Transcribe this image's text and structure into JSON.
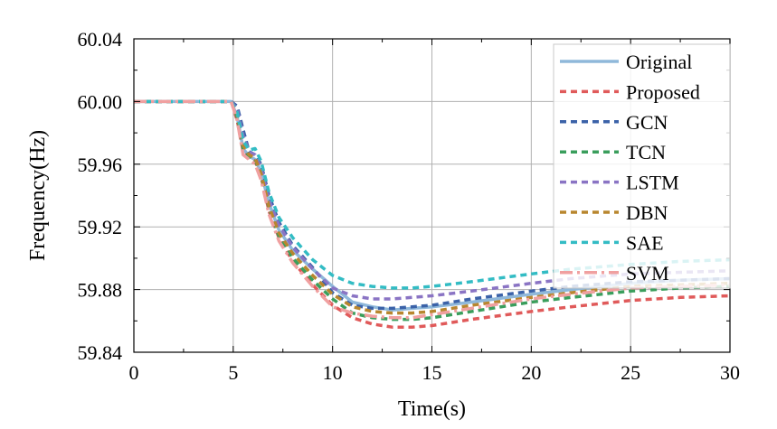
{
  "chart_data": {
    "type": "line",
    "xlabel": "Time(s)",
    "ylabel": "Frequency(Hz)",
    "xlim": [
      0,
      30
    ],
    "ylim": [
      59.84,
      60.04
    ],
    "xticks": [
      0,
      5,
      10,
      15,
      20,
      25,
      30
    ],
    "yticks": [
      59.84,
      59.88,
      59.92,
      59.96,
      60.0,
      60.04
    ],
    "xtick_labels": [
      "0",
      "5",
      "10",
      "15",
      "20",
      "25",
      "30"
    ],
    "ytick_labels": [
      "59.84",
      "59.88",
      "59.92",
      "59.96",
      "60.00",
      "60.04"
    ],
    "grid": true,
    "legend_position": "top-right",
    "x": [
      0,
      4.9,
      5.2,
      5.5,
      5.8,
      6.1,
      6.4,
      6.8,
      7.3,
      8,
      9,
      10,
      11,
      12,
      13,
      14,
      15,
      17,
      20,
      22,
      25,
      27.5,
      30
    ],
    "series": [
      {
        "name": "Original",
        "color": "#8fb8da",
        "dash": "solid",
        "values": [
          60.0,
          60.0,
          59.99,
          59.97,
          59.965,
          59.963,
          59.955,
          59.935,
          59.918,
          59.905,
          59.893,
          59.882,
          59.872,
          59.869,
          59.867,
          59.868,
          59.869,
          59.872,
          59.877,
          59.88,
          59.884,
          59.886,
          59.887
        ]
      },
      {
        "name": "Proposed",
        "color": "#e05a5a",
        "dash": "dashed",
        "values": [
          60.0,
          60.0,
          59.988,
          59.968,
          59.964,
          59.962,
          59.952,
          59.93,
          59.913,
          59.898,
          59.883,
          59.87,
          59.862,
          59.858,
          59.856,
          59.856,
          59.857,
          59.861,
          59.866,
          59.869,
          59.873,
          59.875,
          59.876
        ]
      },
      {
        "name": "GCN",
        "color": "#3b62a8",
        "dash": "dashed",
        "values": [
          60.0,
          60.0,
          59.997,
          59.982,
          59.968,
          59.966,
          59.96,
          59.94,
          59.923,
          59.908,
          59.894,
          59.878,
          59.87,
          59.868,
          59.868,
          59.869,
          59.87,
          59.874,
          59.879,
          59.882,
          59.885,
          59.886,
          59.887
        ]
      },
      {
        "name": "TCN",
        "color": "#3a9e5c",
        "dash": "dashed",
        "values": [
          60.0,
          60.0,
          59.99,
          59.97,
          59.965,
          59.963,
          59.953,
          59.932,
          59.914,
          59.9,
          59.886,
          59.874,
          59.865,
          59.862,
          59.861,
          59.861,
          59.862,
          59.866,
          59.872,
          59.875,
          59.879,
          59.881,
          59.882
        ]
      },
      {
        "name": "LSTM",
        "color": "#8a74c4",
        "dash": "dashed",
        "values": [
          60.0,
          60.0,
          59.995,
          59.978,
          59.968,
          59.966,
          59.958,
          59.937,
          59.921,
          59.907,
          59.893,
          59.881,
          59.876,
          59.874,
          59.874,
          59.875,
          59.876,
          59.879,
          59.884,
          59.887,
          59.89,
          59.891,
          59.892
        ]
      },
      {
        "name": "DBN",
        "color": "#b8862e",
        "dash": "dashed",
        "values": [
          60.0,
          60.0,
          59.992,
          59.972,
          59.966,
          59.964,
          59.954,
          59.933,
          59.916,
          59.903,
          59.889,
          59.877,
          59.869,
          59.866,
          59.865,
          59.865,
          59.866,
          59.87,
          59.875,
          59.878,
          59.882,
          59.883,
          59.884
        ]
      },
      {
        "name": "SAE",
        "color": "#33bcc4",
        "dash": "dashed",
        "values": [
          60.0,
          60.0,
          59.993,
          59.975,
          59.969,
          59.97,
          59.962,
          59.942,
          59.926,
          59.913,
          59.899,
          59.889,
          59.884,
          59.882,
          59.881,
          59.881,
          59.882,
          59.885,
          59.89,
          59.893,
          59.896,
          59.898,
          59.899
        ]
      },
      {
        "name": "SVM",
        "color": "#f0a0a0",
        "dash": "dashdot",
        "values": [
          60.0,
          60.0,
          59.988,
          59.966,
          59.963,
          59.96,
          59.95,
          59.928,
          59.911,
          59.897,
          59.882,
          59.869,
          59.865,
          59.863,
          59.862,
          59.862,
          59.864,
          59.868,
          59.874,
          59.877,
          59.881,
          59.882,
          59.883
        ]
      }
    ]
  }
}
